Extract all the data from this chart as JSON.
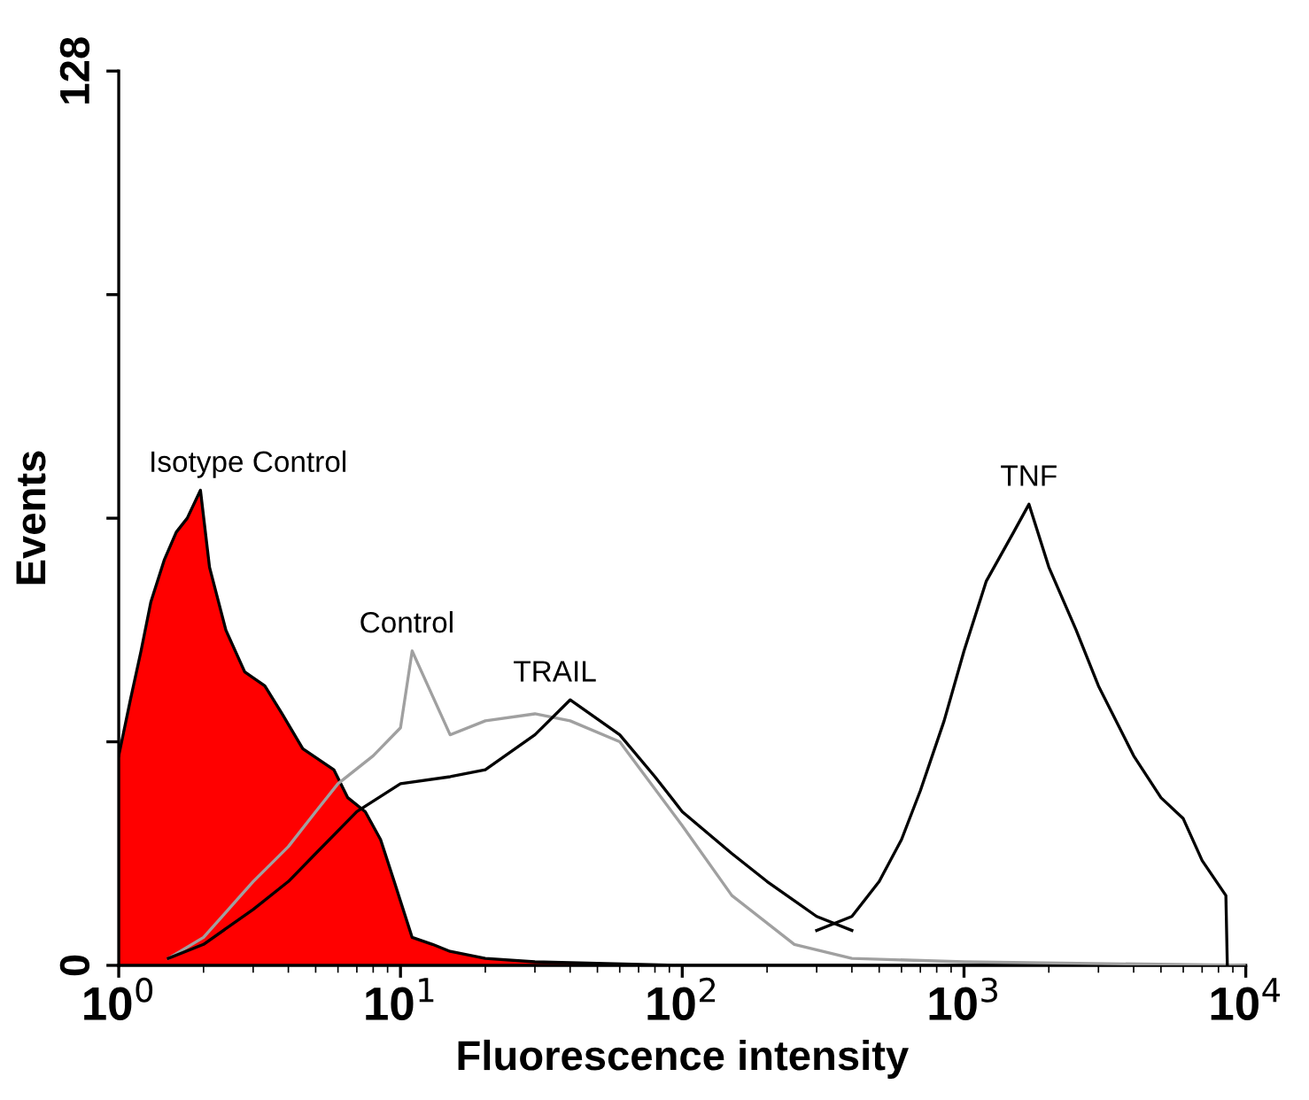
{
  "chart_data": {
    "type": "line",
    "xlabel": "Fluorescence intensity",
    "ylabel": "Events",
    "log": "x",
    "xlim": [
      1,
      10000
    ],
    "ylim": [
      0,
      128
    ],
    "xticks": [
      {
        "value": 1,
        "label": "10$^{0}$"
      },
      {
        "value": 10,
        "label": "10$^{1}$"
      },
      {
        "value": 100,
        "label": "10$^{2}$"
      },
      {
        "value": 1000,
        "label": "10$^{3}$"
      },
      {
        "value": 10000,
        "label": "10$^{4}$"
      }
    ],
    "yticks": [
      0,
      {
        "value": 32,
        "label": null
      },
      {
        "value": 64,
        "label": null
      },
      {
        "value": 96,
        "label": null
      },
      128
    ],
    "grid": false,
    "legend": false,
    "series": [
      {
        "type": "area",
        "name": "Isotype Control",
        "color": "#ff0000",
        "x": [
          1,
          1.1,
          1.2,
          1.3,
          1.45,
          1.6,
          1.75,
          1.95,
          2.1,
          2.4,
          2.8,
          3.3,
          3.8,
          4.5,
          5.8,
          6.5,
          7.5,
          8.5,
          9.5,
          11,
          13,
          15,
          20,
          30,
          100,
          10000
        ],
        "values": [
          30,
          38,
          45,
          52,
          58,
          62,
          64,
          68,
          57,
          48,
          42,
          40,
          36,
          31,
          28,
          24,
          22,
          18,
          12,
          4,
          3,
          2,
          1,
          0.5,
          0,
          0
        ]
      },
      {
        "name": "Control",
        "color": "#a0a0a0",
        "x": [
          1.5,
          2,
          3,
          4,
          5,
          6,
          8,
          10,
          11,
          15,
          20,
          30,
          40,
          60,
          100,
          150,
          250,
          400,
          1000,
          10000
        ],
        "values": [
          1,
          4,
          12,
          17,
          22,
          26,
          30,
          34,
          45,
          33,
          35,
          36,
          35,
          32,
          20,
          10,
          3,
          1,
          0.5,
          0
        ]
      },
      {
        "name": "TRAIL",
        "color": "#000000",
        "x": [
          1.5,
          2,
          3,
          4,
          5,
          7,
          10,
          15,
          20,
          30,
          40,
          60,
          80,
          100,
          150,
          200,
          300,
          400
        ],
        "values": [
          1,
          3,
          8,
          12,
          16,
          22,
          26,
          27,
          28,
          33,
          38,
          33,
          27,
          22,
          16,
          12,
          7,
          5
        ]
      },
      {
        "name": "TNF",
        "color": "#000000",
        "x": [
          300,
          400,
          500,
          600,
          700,
          850,
          1000,
          1200,
          1500,
          1700,
          2000,
          2500,
          3000,
          4000,
          5000,
          6000,
          7000,
          8500,
          8600
        ],
        "values": [
          5,
          7,
          12,
          18,
          25,
          35,
          45,
          55,
          62,
          66,
          57,
          48,
          40,
          30,
          24,
          21,
          15,
          10,
          0
        ]
      }
    ]
  }
}
